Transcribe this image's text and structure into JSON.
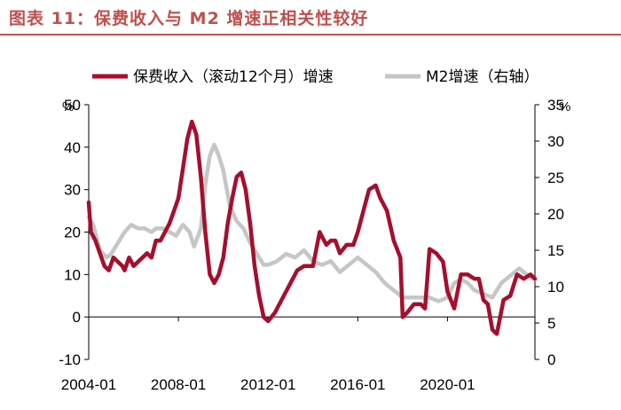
{
  "header": {
    "figure_title": "图表 11：保费收入与 M2 增速正相关性较好"
  },
  "colors": {
    "premium": "#a50f2d",
    "m2": "#c6c6c6",
    "title": "#c0504d",
    "axis": "#000000"
  },
  "chart_data": {
    "type": "line",
    "title": "图表 11：保费收入与 M2 增速正相关性较好",
    "legend_position": "top",
    "grid": false,
    "x_ticks": [
      "2004-01",
      "2008-01",
      "2012-01",
      "2016-01",
      "2020-01"
    ],
    "x_range": [
      2004.0,
      2023.9
    ],
    "left_axis": {
      "unit": "%",
      "ylim": [
        -10,
        50
      ],
      "ticks": [
        "-10",
        "0",
        "10",
        "20",
        "30",
        "40",
        "50"
      ]
    },
    "right_axis": {
      "unit": "%",
      "ylim": [
        0,
        35
      ],
      "ticks": [
        "0",
        "5",
        "10",
        "15",
        "20",
        "25",
        "30",
        "35"
      ]
    },
    "series": [
      {
        "name": "保费收入（滚动12个月）增速",
        "axis": "left",
        "x": [
          2004.0,
          2004.1,
          2004.3,
          2004.5,
          2004.7,
          2004.9,
          2005.1,
          2005.3,
          2005.5,
          2005.6,
          2005.8,
          2006.0,
          2006.2,
          2006.4,
          2006.6,
          2006.8,
          2007.0,
          2007.2,
          2007.4,
          2007.6,
          2007.8,
          2008.0,
          2008.2,
          2008.4,
          2008.6,
          2008.8,
          2009.0,
          2009.2,
          2009.4,
          2009.6,
          2009.8,
          2010.0,
          2010.2,
          2010.4,
          2010.6,
          2010.8,
          2011.0,
          2011.2,
          2011.4,
          2011.6,
          2011.8,
          2012.0,
          2012.3,
          2012.6,
          2013.0,
          2013.3,
          2013.6,
          2014.0,
          2014.3,
          2014.6,
          2014.8,
          2015.0,
          2015.2,
          2015.5,
          2015.8,
          2016.0,
          2016.3,
          2016.5,
          2016.8,
          2017.0,
          2017.3,
          2017.6,
          2017.9,
          2018.0,
          2018.2,
          2018.5,
          2018.8,
          2019.0,
          2019.2,
          2019.5,
          2019.8,
          2020.0,
          2020.3,
          2020.6,
          2020.9,
          2021.2,
          2021.4,
          2021.6,
          2021.8,
          2022.0,
          2022.2,
          2022.5,
          2022.8,
          2023.1,
          2023.4,
          2023.7,
          2023.9
        ],
        "values": [
          27,
          20,
          18,
          15,
          12,
          11,
          14,
          13,
          12,
          11,
          14,
          12,
          13,
          14,
          15,
          14,
          18,
          18,
          20,
          22,
          25,
          28,
          35,
          42,
          46,
          43,
          33,
          20,
          10,
          8,
          10,
          14,
          22,
          28,
          33,
          34,
          30,
          22,
          12,
          5,
          0,
          -1,
          1,
          4,
          8,
          11,
          12,
          12,
          20,
          17,
          18,
          18,
          15,
          17,
          17,
          20,
          26,
          30,
          31,
          28,
          25,
          18,
          14,
          0,
          1,
          3,
          3,
          2,
          16,
          15,
          13,
          6,
          2,
          10,
          10,
          9,
          9,
          4,
          3,
          -3,
          -4,
          4,
          5,
          10,
          9,
          10,
          9
        ]
      },
      {
        "name": "M2增速（右轴）",
        "axis": "right",
        "x": [
          2004.0,
          2004.2,
          2004.5,
          2004.8,
          2005.0,
          2005.3,
          2005.6,
          2005.9,
          2006.2,
          2006.5,
          2006.8,
          2007.0,
          2007.3,
          2007.6,
          2007.9,
          2008.2,
          2008.5,
          2008.7,
          2009.0,
          2009.2,
          2009.4,
          2009.6,
          2009.8,
          2010.0,
          2010.3,
          2010.6,
          2010.9,
          2011.2,
          2011.5,
          2011.8,
          2012.0,
          2012.4,
          2012.8,
          2013.2,
          2013.6,
          2014.0,
          2014.4,
          2014.8,
          2015.2,
          2015.6,
          2016.0,
          2016.4,
          2016.8,
          2017.2,
          2017.6,
          2018.0,
          2018.4,
          2018.8,
          2019.2,
          2019.6,
          2020.0,
          2020.3,
          2020.6,
          2020.9,
          2021.2,
          2021.6,
          2022.0,
          2022.4,
          2022.8,
          2023.2,
          2023.6,
          2023.9
        ],
        "values": [
          19.5,
          18.5,
          15,
          14,
          14.5,
          16,
          17.5,
          18.5,
          18,
          18,
          17.5,
          18,
          18,
          17.5,
          17,
          18.5,
          17.5,
          15.5,
          18,
          24,
          28,
          29.5,
          28,
          26,
          21,
          19,
          18,
          16,
          14.5,
          13,
          13,
          13.5,
          14.5,
          14,
          15,
          13.5,
          13,
          13.5,
          12,
          13,
          14,
          13,
          12,
          10.5,
          9.5,
          8.5,
          8.5,
          8.5,
          8.5,
          8,
          8.5,
          10.5,
          11,
          10.5,
          9.5,
          9,
          8.5,
          10.5,
          11.5,
          12.5,
          11.5,
          11
        ]
      }
    ]
  }
}
